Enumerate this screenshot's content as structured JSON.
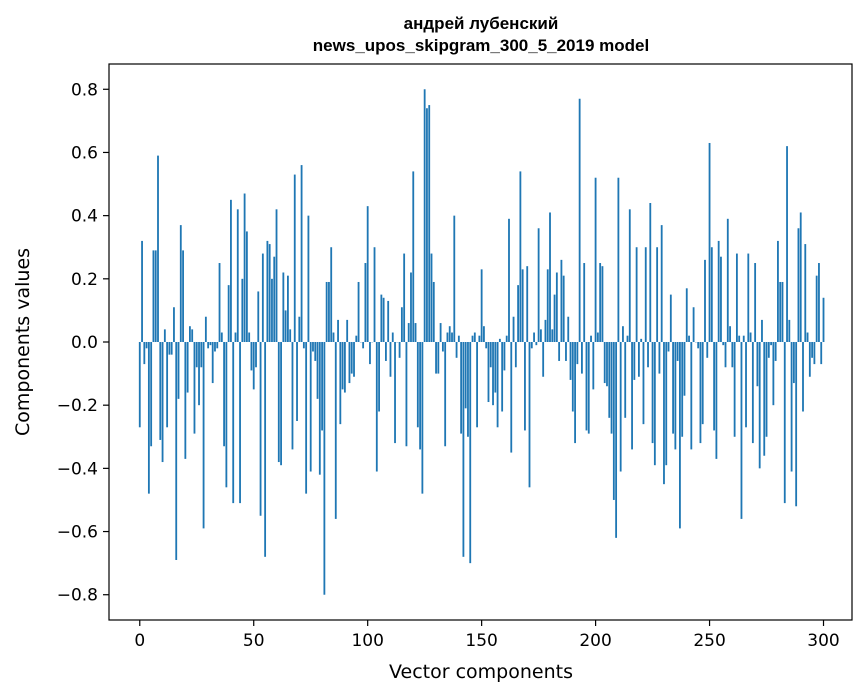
{
  "chart_data": {
    "type": "bar",
    "title": [
      "андрей лубенский",
      "news_upos_skipgram_300_5_2019 model"
    ],
    "xlabel": "Vector components",
    "ylabel": "Components values",
    "xlim": [
      -13.5,
      312.5
    ],
    "ylim": [
      -0.88,
      0.88
    ],
    "xticks": [
      0,
      50,
      100,
      150,
      200,
      250,
      300
    ],
    "yticks": [
      -0.8,
      -0.6,
      -0.4,
      -0.2,
      0.0,
      0.2,
      0.4,
      0.6,
      0.8
    ],
    "xtick_labels": [
      "0",
      "50",
      "100",
      "150",
      "200",
      "250",
      "300"
    ],
    "ytick_labels": [
      "−0.8",
      "−0.6",
      "−0.4",
      "−0.2",
      "0.0",
      "0.2",
      "0.4",
      "0.6",
      "0.8"
    ],
    "bar_color": "#1f77b4",
    "values": [
      -0.27,
      0.32,
      -0.07,
      -0.02,
      -0.48,
      -0.33,
      0.29,
      0.29,
      0.59,
      -0.31,
      -0.38,
      0.04,
      -0.27,
      -0.04,
      -0.04,
      0.11,
      -0.69,
      -0.18,
      0.37,
      0.29,
      -0.37,
      -0.16,
      0.05,
      0.04,
      -0.29,
      -0.08,
      -0.2,
      -0.08,
      -0.59,
      0.08,
      -0.02,
      -0.01,
      -0.13,
      -0.03,
      -0.02,
      0.25,
      0.03,
      -0.33,
      -0.46,
      0.18,
      0.45,
      -0.51,
      0.03,
      0.42,
      -0.51,
      0.2,
      0.47,
      0.35,
      0.03,
      -0.09,
      -0.15,
      -0.08,
      0.16,
      -0.55,
      0.28,
      -0.68,
      0.32,
      0.31,
      0.2,
      0.27,
      0.42,
      -0.38,
      -0.39,
      0.22,
      0.1,
      0.21,
      0.04,
      -0.34,
      0.53,
      -0.25,
      0.08,
      0.56,
      -0.02,
      -0.48,
      0.4,
      -0.41,
      -0.03,
      -0.06,
      -0.18,
      -0.42,
      -0.28,
      -0.8,
      0.19,
      0.19,
      0.3,
      0.03,
      -0.56,
      0.07,
      -0.26,
      -0.15,
      -0.16,
      0.07,
      -0.13,
      -0.1,
      -0.11,
      0.02,
      0.19,
      0.0,
      -0.02,
      0.25,
      0.43,
      -0.07,
      0.0,
      0.3,
      -0.41,
      -0.22,
      0.15,
      0.14,
      -0.06,
      0.13,
      -0.11,
      0.03,
      -0.32,
      0.0,
      -0.05,
      0.11,
      0.28,
      -0.33,
      0.06,
      0.22,
      0.54,
      0.06,
      -0.27,
      -0.34,
      -0.48,
      0.8,
      0.74,
      0.75,
      0.28,
      0.19,
      -0.1,
      -0.1,
      0.06,
      -0.03,
      -0.33,
      0.03,
      0.05,
      0.03,
      0.4,
      -0.05,
      0.02,
      -0.29,
      -0.68,
      -0.21,
      -0.3,
      -0.7,
      0.02,
      0.03,
      -0.27,
      0.02,
      0.23,
      0.05,
      -0.02,
      -0.19,
      -0.08,
      -0.2,
      -0.16,
      -0.27,
      0.01,
      -0.22,
      -0.09,
      0.02,
      0.39,
      -0.35,
      0.08,
      -0.08,
      0.18,
      0.54,
      0.23,
      -0.28,
      0.24,
      -0.46,
      -0.02,
      0.03,
      -0.01,
      0.36,
      0.04,
      -0.11,
      0.07,
      0.23,
      0.41,
      0.04,
      0.15,
      0.22,
      -0.06,
      0.26,
      0.21,
      -0.06,
      0.08,
      -0.12,
      -0.22,
      -0.32,
      -0.07,
      0.77,
      -0.1,
      0.25,
      -0.28,
      -0.29,
      0.02,
      -0.15,
      0.52,
      0.03,
      0.25,
      0.24,
      -0.13,
      -0.14,
      -0.24,
      -0.29,
      -0.5,
      -0.62,
      0.52,
      -0.41,
      0.05,
      -0.24,
      0.02,
      0.42,
      -0.34,
      -0.12,
      0.3,
      -0.11,
      0.01,
      -0.26,
      0.3,
      -0.08,
      0.44,
      -0.32,
      -0.39,
      0.3,
      -0.1,
      0.37,
      -0.45,
      -0.39,
      -0.03,
      0.15,
      -0.29,
      -0.34,
      -0.06,
      -0.59,
      -0.3,
      -0.17,
      0.17,
      0.02,
      -0.34,
      0.11,
      0.0,
      -0.02,
      -0.32,
      -0.26,
      0.26,
      -0.05,
      0.63,
      0.3,
      -0.28,
      -0.37,
      0.32,
      0.27,
      -0.01,
      -0.08,
      0.39,
      0.05,
      -0.08,
      -0.3,
      0.28,
      0.02,
      -0.56,
      0.02,
      -0.27,
      0.28,
      0.03,
      -0.32,
      0.25,
      -0.14,
      -0.4,
      0.07,
      -0.36,
      -0.3,
      -0.05,
      -0.01,
      -0.2,
      -0.06,
      0.32,
      0.19,
      0.19,
      -0.51,
      0.62,
      0.07,
      -0.41,
      -0.13,
      -0.52,
      0.36,
      0.41,
      -0.22,
      0.31,
      0.03,
      -0.11,
      -0.05,
      -0.07,
      0.21,
      0.25,
      -0.07,
      0.14
    ]
  }
}
